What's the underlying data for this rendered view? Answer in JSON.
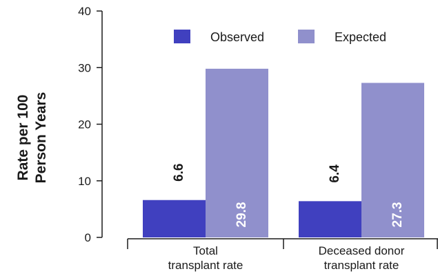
{
  "chart_data": {
    "type": "bar",
    "title": "",
    "ylabel_lines": [
      "Rate per 100",
      "Person Years"
    ],
    "xlabel": "",
    "categories": [
      [
        "Total",
        "transplant rate"
      ],
      [
        "Deceased donor",
        "transplant rate"
      ]
    ],
    "series": [
      {
        "name": "Observed",
        "values": [
          6.6,
          6.4
        ],
        "labels": [
          "6.6",
          "6.4"
        ],
        "color": "#4040BF"
      },
      {
        "name": "Expected",
        "values": [
          29.8,
          27.3
        ],
        "labels": [
          "29.8",
          "27.3"
        ],
        "color": "#9090CC"
      }
    ],
    "ylim": [
      0,
      40
    ],
    "yticks": [
      0,
      10,
      20,
      30,
      40
    ],
    "ytick_labels": [
      "0",
      "10",
      "20",
      "30",
      "40"
    ],
    "grid": false,
    "legend_position": "top"
  }
}
